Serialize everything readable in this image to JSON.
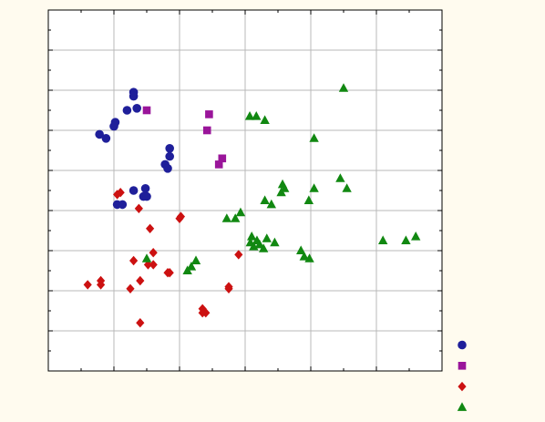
{
  "chart_data": {
    "type": "scatter",
    "xlim": [
      0,
      6
    ],
    "ylim": [
      0,
      9
    ],
    "grid": true,
    "legend_placement": "bottom-right",
    "series": [
      {
        "color": "#1f1f9a",
        "marker": "circle",
        "points": [
          [
            1.3,
            6.95
          ],
          [
            1.3,
            6.85
          ],
          [
            1.35,
            6.55
          ],
          [
            1.2,
            6.5
          ],
          [
            1.02,
            6.2
          ],
          [
            1.0,
            6.1
          ],
          [
            0.78,
            5.9
          ],
          [
            0.88,
            5.8
          ],
          [
            1.85,
            5.55
          ],
          [
            1.85,
            5.35
          ],
          [
            1.78,
            5.15
          ],
          [
            1.82,
            5.05
          ],
          [
            1.48,
            4.55
          ],
          [
            1.3,
            4.5
          ],
          [
            1.45,
            4.35
          ],
          [
            1.5,
            4.35
          ],
          [
            1.05,
            4.15
          ],
          [
            1.13,
            4.15
          ]
        ]
      },
      {
        "color": "#9a159a",
        "marker": "square",
        "points": [
          [
            1.5,
            6.5
          ],
          [
            2.45,
            6.4
          ],
          [
            2.42,
            6.0
          ],
          [
            2.65,
            5.3
          ],
          [
            2.6,
            5.15
          ]
        ]
      },
      {
        "color": "#cc1111",
        "marker": "diamond",
        "points": [
          [
            1.1,
            4.45
          ],
          [
            1.05,
            4.4
          ],
          [
            1.38,
            4.05
          ],
          [
            2.02,
            3.85
          ],
          [
            2.0,
            3.8
          ],
          [
            1.55,
            3.55
          ],
          [
            1.6,
            2.95
          ],
          [
            1.3,
            2.75
          ],
          [
            1.52,
            2.65
          ],
          [
            1.6,
            2.65
          ],
          [
            1.82,
            2.45
          ],
          [
            1.85,
            2.45
          ],
          [
            2.9,
            2.9
          ],
          [
            0.8,
            2.25
          ],
          [
            0.6,
            2.15
          ],
          [
            0.8,
            2.15
          ],
          [
            1.4,
            2.25
          ],
          [
            1.25,
            2.05
          ],
          [
            2.75,
            2.1
          ],
          [
            2.75,
            2.05
          ],
          [
            2.35,
            1.55
          ],
          [
            2.4,
            1.45
          ],
          [
            2.35,
            1.45
          ],
          [
            1.4,
            1.2
          ]
        ]
      },
      {
        "color": "#118811",
        "marker": "triangle",
        "points": [
          [
            4.5,
            7.05
          ],
          [
            3.07,
            6.35
          ],
          [
            3.17,
            6.35
          ],
          [
            3.3,
            6.25
          ],
          [
            4.05,
            5.8
          ],
          [
            4.45,
            4.8
          ],
          [
            4.55,
            4.55
          ],
          [
            4.05,
            4.55
          ],
          [
            3.57,
            4.65
          ],
          [
            3.6,
            4.55
          ],
          [
            3.55,
            4.45
          ],
          [
            3.97,
            4.25
          ],
          [
            3.3,
            4.25
          ],
          [
            3.4,
            4.15
          ],
          [
            2.93,
            3.95
          ],
          [
            2.72,
            3.8
          ],
          [
            2.85,
            3.8
          ],
          [
            3.1,
            3.35
          ],
          [
            3.33,
            3.3
          ],
          [
            3.08,
            3.2
          ],
          [
            3.18,
            3.25
          ],
          [
            3.22,
            3.15
          ],
          [
            3.45,
            3.2
          ],
          [
            3.28,
            3.05
          ],
          [
            3.13,
            3.1
          ],
          [
            3.85,
            3.0
          ],
          [
            5.6,
            3.35
          ],
          [
            5.45,
            3.25
          ],
          [
            5.1,
            3.25
          ],
          [
            1.5,
            2.8
          ],
          [
            3.9,
            2.85
          ],
          [
            3.98,
            2.8
          ],
          [
            2.25,
            2.75
          ],
          [
            2.18,
            2.6
          ],
          [
            2.12,
            2.5
          ]
        ]
      }
    ]
  }
}
